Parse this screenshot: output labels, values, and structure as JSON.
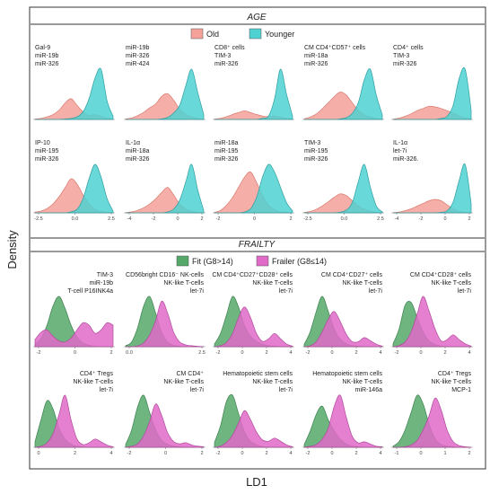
{
  "figure": {
    "ylabel": "Density",
    "xlabel": "LD1",
    "sections": [
      {
        "id": "age",
        "title": "AGE",
        "legend": [
          {
            "label": "Old",
            "color": "#f4a199"
          },
          {
            "label": "Younger",
            "color": "#4fd1d1"
          }
        ]
      },
      {
        "id": "frailty",
        "title": "FRAILTY",
        "legend": [
          {
            "label": "Fit (G8>14)",
            "color": "#55a86a"
          },
          {
            "label": "Frailer (G8≤14)",
            "color": "#e06ac8"
          }
        ]
      }
    ]
  },
  "chart_data": [
    {
      "type": "area",
      "section": "age",
      "label_lines": [
        "Gal-9",
        "miR-19b",
        "miR-326"
      ],
      "ticks": [],
      "series": [
        {
          "name": "Old",
          "values": [
            0.02,
            0.05,
            0.12,
            0.22,
            0.42,
            0.75,
            0.95,
            0.65,
            0.35,
            0.18,
            0.22,
            0.15,
            0.06,
            0.02
          ]
        },
        {
          "name": "Younger",
          "values": [
            0,
            0,
            0,
            0,
            0,
            0.02,
            0.05,
            0.12,
            0.35,
            0.95,
            1.9,
            2.3,
            0.85,
            0.15
          ]
        }
      ]
    },
    {
      "type": "area",
      "section": "age",
      "label_lines": [
        "miR-19b",
        "miR-326",
        "miR-424"
      ],
      "ticks": [],
      "series": [
        {
          "name": "Old",
          "values": [
            0.02,
            0.06,
            0.15,
            0.28,
            0.45,
            0.6,
            0.9,
            1.0,
            0.75,
            0.4,
            0.2,
            0.1,
            0.04,
            0.01
          ]
        },
        {
          "name": "Younger",
          "values": [
            0,
            0,
            0,
            0,
            0,
            0,
            0.02,
            0.08,
            0.25,
            0.55,
            1.3,
            1.95,
            1.05,
            0.2
          ]
        }
      ]
    },
    {
      "type": "area",
      "section": "age",
      "label_lines": [
        "CD8⁺ cells",
        "TIM-3",
        "miR-326"
      ],
      "ticks": [],
      "series": [
        {
          "name": "Old",
          "values": [
            0.02,
            0.05,
            0.12,
            0.22,
            0.3,
            0.38,
            0.3,
            0.22,
            0.15,
            0.12,
            0.14,
            0.1,
            0.05,
            0.02
          ]
        },
        {
          "name": "Younger",
          "values": [
            0,
            0,
            0,
            0,
            0,
            0,
            0,
            0,
            0.05,
            0.15,
            0.9,
            2.2,
            1.1,
            0.15
          ]
        }
      ]
    },
    {
      "type": "area",
      "section": "age",
      "label_lines": [
        "CM CD4⁺CD57⁺ cells",
        "miR-18a",
        "miR-326"
      ],
      "ticks": [],
      "series": [
        {
          "name": "Old",
          "values": [
            0.02,
            0.08,
            0.18,
            0.35,
            0.55,
            0.75,
            0.9,
            0.8,
            0.55,
            0.3,
            0.15,
            0.08,
            0.03,
            0.01
          ]
        },
        {
          "name": "Younger",
          "values": [
            0,
            0,
            0,
            0,
            0,
            0,
            0.02,
            0.06,
            0.2,
            0.55,
            1.3,
            1.65,
            0.8,
            0.15
          ]
        }
      ]
    },
    {
      "type": "area",
      "section": "age",
      "label_lines": [
        "CD4⁺ cells",
        "TIM-3",
        "miR-326"
      ],
      "ticks": [],
      "series": [
        {
          "name": "Old",
          "values": [
            0.01,
            0.04,
            0.1,
            0.18,
            0.28,
            0.35,
            0.42,
            0.4,
            0.35,
            0.28,
            0.2,
            0.12,
            0.05,
            0.02
          ]
        },
        {
          "name": "Younger",
          "values": [
            0,
            0,
            0,
            0,
            0,
            0,
            0,
            0,
            0.03,
            0.1,
            0.45,
            1.3,
            1.6,
            0.3
          ]
        }
      ]
    },
    {
      "type": "area",
      "section": "age",
      "label_lines": [
        "IP-10",
        "miR-195",
        "miR-326"
      ],
      "ticks": [
        "-2.5",
        "0.0",
        "2.5"
      ],
      "series": [
        {
          "name": "Old",
          "values": [
            0.02,
            0.05,
            0.12,
            0.25,
            0.45,
            0.7,
            0.95,
            0.8,
            0.5,
            0.25,
            0.1,
            0.04,
            0.02,
            0.01
          ]
        },
        {
          "name": "Younger",
          "values": [
            0,
            0,
            0,
            0,
            0,
            0,
            0.03,
            0.1,
            0.4,
            0.95,
            1.35,
            1.0,
            0.4,
            0.05
          ]
        }
      ]
    },
    {
      "type": "area",
      "section": "age",
      "label_lines": [
        "IL-1α",
        "miR-18a",
        "miR-326"
      ],
      "ticks": [
        "-4",
        "-2",
        "0",
        "2"
      ],
      "series": [
        {
          "name": "Old",
          "values": [
            0.01,
            0.04,
            0.1,
            0.2,
            0.35,
            0.55,
            0.8,
            1.0,
            0.7,
            0.35,
            0.15,
            0.06,
            0.02,
            0.01
          ]
        },
        {
          "name": "Younger",
          "values": [
            0,
            0,
            0,
            0,
            0,
            0,
            0,
            0.04,
            0.15,
            0.5,
            1.2,
            1.9,
            0.9,
            0.1
          ]
        }
      ]
    },
    {
      "type": "area",
      "section": "age",
      "label_lines": [
        "miR-18a",
        "miR-195",
        "miR-326"
      ],
      "ticks": [
        "-2",
        "0",
        "2"
      ],
      "series": [
        {
          "name": "Old",
          "values": [
            0.01,
            0.05,
            0.15,
            0.3,
            0.5,
            0.7,
            0.8,
            0.6,
            0.35,
            0.15,
            0.06,
            0.02,
            0.01,
            0
          ]
        },
        {
          "name": "Younger",
          "values": [
            0,
            0,
            0,
            0,
            0,
            0.02,
            0.08,
            0.3,
            0.7,
            0.95,
            0.8,
            0.5,
            0.2,
            0.04
          ]
        }
      ]
    },
    {
      "type": "area",
      "section": "age",
      "label_lines": [
        "TIM-3",
        "miR-195",
        "miR-326"
      ],
      "ticks": [
        "-2.5",
        "0.0",
        "2.5"
      ],
      "series": [
        {
          "name": "Old",
          "values": [
            0.01,
            0.04,
            0.1,
            0.2,
            0.32,
            0.45,
            0.55,
            0.5,
            0.35,
            0.2,
            0.1,
            0.05,
            0.02,
            0.01
          ]
        },
        {
          "name": "Younger",
          "values": [
            0,
            0,
            0,
            0,
            0,
            0,
            0.02,
            0.08,
            0.3,
            0.9,
            1.4,
            0.75,
            0.2,
            0.03
          ]
        }
      ]
    },
    {
      "type": "area",
      "section": "age",
      "label_lines": [
        "IL-1α",
        "let-7i",
        "miR-326."
      ],
      "ticks": [
        "-4",
        "-2",
        "0",
        "2"
      ],
      "series": [
        {
          "name": "Old",
          "values": [
            0.01,
            0.03,
            0.08,
            0.15,
            0.25,
            0.35,
            0.45,
            0.5,
            0.45,
            0.3,
            0.15,
            0.06,
            0.02,
            0.01
          ]
        },
        {
          "name": "Younger",
          "values": [
            0,
            0,
            0,
            0,
            0,
            0,
            0,
            0,
            0.02,
            0.08,
            0.4,
            1.2,
            1.8,
            0.35
          ]
        }
      ]
    },
    {
      "type": "area",
      "section": "frailty",
      "label_lines": [
        "TIM-3",
        "miR-19b",
        "T-cell P16INK4a"
      ],
      "ticks": [
        "-2",
        "0",
        "2"
      ],
      "series": [
        {
          "name": "Fit (G8>14)",
          "values": [
            0.05,
            0.18,
            0.45,
            0.85,
            1.05,
            0.8,
            0.45,
            0.2,
            0.08,
            0.03,
            0.01,
            0,
            0,
            0
          ]
        },
        {
          "name": "Frailer (G8≤14)",
          "values": [
            0.15,
            0.3,
            0.35,
            0.22,
            0.12,
            0.1,
            0.18,
            0.35,
            0.5,
            0.45,
            0.28,
            0.35,
            0.5,
            0.45
          ]
        }
      ]
    },
    {
      "type": "area",
      "section": "frailty",
      "label_lines": [
        "CD56bright CD16⁻ NK-cells",
        "NK-like T-cells",
        "let-7i"
      ],
      "ticks": [
        "0.0",
        "2.5"
      ],
      "series": [
        {
          "name": "Fit (G8>14)",
          "values": [
            0.02,
            0.1,
            0.4,
            0.85,
            1.05,
            0.7,
            0.3,
            0.1,
            0.03,
            0.01,
            0,
            0,
            0,
            0
          ]
        },
        {
          "name": "Frailer (G8≤14)",
          "values": [
            0,
            0,
            0.02,
            0.08,
            0.25,
            0.55,
            0.95,
            0.7,
            0.3,
            0.1,
            0.04,
            0.02,
            0.01,
            0
          ]
        }
      ]
    },
    {
      "type": "area",
      "section": "frailty",
      "label_lines": [
        "CM CD4⁺CD27⁺CD28⁺ cells",
        "NK-like T-cells",
        "let-7i"
      ],
      "ticks": [
        "-2",
        "0",
        "2",
        "4"
      ],
      "series": [
        {
          "name": "Fit (G8>14)",
          "values": [
            0.05,
            0.25,
            0.6,
            0.95,
            0.75,
            0.4,
            0.2,
            0.1,
            0.05,
            0.02,
            0.01,
            0,
            0,
            0
          ]
        },
        {
          "name": "Frailer (G8≤14)",
          "values": [
            0,
            0.02,
            0.08,
            0.25,
            0.55,
            0.75,
            0.55,
            0.25,
            0.1,
            0.15,
            0.25,
            0.15,
            0.05,
            0.01
          ]
        }
      ]
    },
    {
      "type": "area",
      "section": "frailty",
      "label_lines": [
        "CM CD4⁺CD27⁺ cells",
        "NK-like T-cells",
        "let-7i"
      ],
      "ticks": [
        "-2",
        "0",
        "2",
        "4"
      ],
      "series": [
        {
          "name": "Fit (G8>14)",
          "values": [
            0.05,
            0.3,
            0.7,
            1.0,
            0.7,
            0.35,
            0.15,
            0.06,
            0.02,
            0.01,
            0,
            0,
            0,
            0
          ]
        },
        {
          "name": "Frailer (G8≤14)",
          "values": [
            0,
            0.02,
            0.1,
            0.3,
            0.55,
            0.7,
            0.5,
            0.25,
            0.1,
            0.1,
            0.18,
            0.12,
            0.05,
            0.01
          ]
        }
      ]
    },
    {
      "type": "area",
      "section": "frailty",
      "label_lines": [
        "CM CD4⁺CD28⁺ cells",
        "NK-like T-cells",
        "let-7i"
      ],
      "ticks": [
        "-2",
        "0",
        "2",
        "4"
      ],
      "series": [
        {
          "name": "Fit (G8>14)",
          "values": [
            0.05,
            0.3,
            0.7,
            0.75,
            0.5,
            0.25,
            0.1,
            0.04,
            0.01,
            0,
            0,
            0,
            0,
            0
          ]
        },
        {
          "name": "Frailer (G8≤14)",
          "values": [
            0,
            0.02,
            0.08,
            0.25,
            0.55,
            0.85,
            0.6,
            0.3,
            0.1,
            0.12,
            0.2,
            0.12,
            0.05,
            0.01
          ]
        }
      ]
    },
    {
      "type": "area",
      "section": "frailty",
      "label_lines": [
        "CD4⁺ Tregs",
        "NK-like T-cells",
        "let-7i"
      ],
      "ticks": [
        "0",
        "2",
        "4"
      ],
      "series": [
        {
          "name": "Fit (G8>14)",
          "values": [
            0.1,
            0.5,
            0.85,
            0.7,
            0.35,
            0.15,
            0.06,
            0.02,
            0.01,
            0,
            0,
            0,
            0,
            0
          ]
        },
        {
          "name": "Frailer (G8≤14)",
          "values": [
            0,
            0.02,
            0.08,
            0.25,
            0.6,
            0.95,
            0.5,
            0.15,
            0.05,
            0.08,
            0.15,
            0.1,
            0.04,
            0.01
          ]
        }
      ]
    },
    {
      "type": "area",
      "section": "frailty",
      "label_lines": [
        "CM CD4⁺",
        "NK-like T-cells",
        "let-7i"
      ],
      "ticks": [
        "-2",
        "0",
        "2"
      ],
      "series": [
        {
          "name": "Fit (G8>14)",
          "values": [
            0.05,
            0.3,
            0.7,
            0.9,
            0.6,
            0.3,
            0.12,
            0.05,
            0.02,
            0.01,
            0,
            0,
            0,
            0
          ]
        },
        {
          "name": "Frailer (G8≤14)",
          "values": [
            0,
            0.02,
            0.06,
            0.2,
            0.45,
            0.75,
            0.55,
            0.25,
            0.1,
            0.06,
            0.08,
            0.04,
            0.02,
            0.01
          ]
        }
      ]
    },
    {
      "type": "area",
      "section": "frailty",
      "label_lines": [
        "Hematopoietic stem cells",
        "NK-like T-cells",
        "let-7i"
      ],
      "ticks": [
        "-2",
        "0",
        "2",
        "4"
      ],
      "series": [
        {
          "name": "Fit (G8>14)",
          "values": [
            0.08,
            0.35,
            0.75,
            0.85,
            0.55,
            0.25,
            0.1,
            0.04,
            0.01,
            0,
            0,
            0,
            0,
            0
          ]
        },
        {
          "name": "Frailer (G8≤14)",
          "values": [
            0,
            0.02,
            0.08,
            0.2,
            0.4,
            0.6,
            0.45,
            0.25,
            0.12,
            0.1,
            0.15,
            0.1,
            0.04,
            0.01
          ]
        }
      ]
    },
    {
      "type": "area",
      "section": "frailty",
      "label_lines": [
        "Hematopoietic stem cells",
        "NK-like T-cells",
        "miR-146a"
      ],
      "ticks": [
        "-2",
        "0",
        "2",
        "4"
      ],
      "series": [
        {
          "name": "Fit (G8>14)",
          "values": [
            0.05,
            0.3,
            0.6,
            0.75,
            0.5,
            0.3,
            0.15,
            0.06,
            0.02,
            0.01,
            0,
            0,
            0,
            0
          ]
        },
        {
          "name": "Frailer (G8≤14)",
          "values": [
            0,
            0.02,
            0.05,
            0.15,
            0.35,
            0.75,
            0.95,
            0.55,
            0.2,
            0.08,
            0.1,
            0.06,
            0.02,
            0.01
          ]
        }
      ]
    },
    {
      "type": "area",
      "section": "frailty",
      "label_lines": [
        "CD4⁺ Tregs",
        "NK-like T-cells",
        "MCP-1"
      ],
      "ticks": [
        "-1",
        "0",
        "1",
        "2"
      ],
      "series": [
        {
          "name": "Fit (G8>14)",
          "values": [
            0.02,
            0.1,
            0.3,
            0.6,
            0.9,
            0.75,
            0.4,
            0.15,
            0.05,
            0.02,
            0.01,
            0,
            0,
            0
          ]
        },
        {
          "name": "Frailer (G8≤14)",
          "values": [
            0,
            0,
            0.01,
            0.04,
            0.12,
            0.3,
            0.55,
            0.85,
            0.65,
            0.3,
            0.1,
            0.03,
            0.01,
            0
          ]
        }
      ]
    }
  ]
}
